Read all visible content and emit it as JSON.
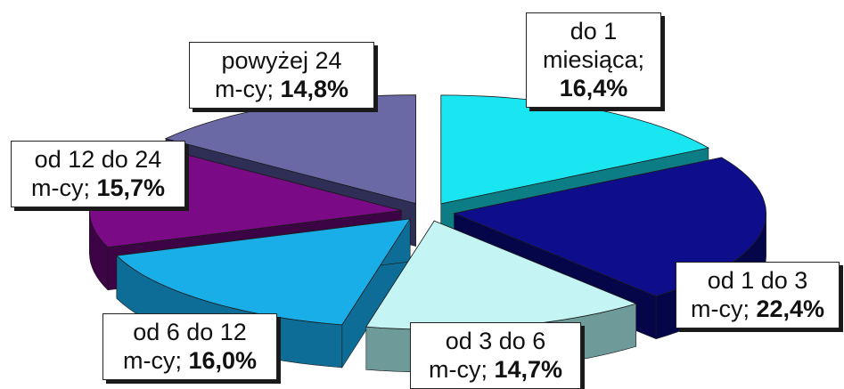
{
  "chart_data": {
    "type": "pie",
    "style": "3d-exploded",
    "title": "",
    "legend": "none",
    "slices": [
      {
        "line1": "do 1",
        "line2": "miesiąca;",
        "value_label": "16,4%",
        "value": 16.4,
        "top_color": "#19e6f0",
        "side_color": "#0c7d84"
      },
      {
        "line1": "od 1 do 3",
        "line2": "m-cy;",
        "value_label": "22,4%",
        "value": 22.4,
        "top_color": "#0e0e8c",
        "side_color": "#05054a"
      },
      {
        "line1": "od 3 do 6",
        "line2": "m-cy;",
        "value_label": "14,7%",
        "value": 14.7,
        "top_color": "#c5f4f4",
        "side_color": "#6f9a9a"
      },
      {
        "line1": "od 6 do 12",
        "line2": "m-cy;",
        "value_label": "16,0%",
        "value": 16.0,
        "top_color": "#1aaee8",
        "side_color": "#0d6d96"
      },
      {
        "line1": "od 12 do 24",
        "line2": "m-cy;",
        "value_label": "15,7%",
        "value": 15.7,
        "top_color": "#7a0a86",
        "side_color": "#3c0444"
      },
      {
        "line1": "powyżej 24",
        "line2": "m-cy;",
        "value_label": "14,8%",
        "value": 14.8,
        "top_color": "#6a69a6",
        "side_color": "#2e2e56"
      }
    ]
  }
}
